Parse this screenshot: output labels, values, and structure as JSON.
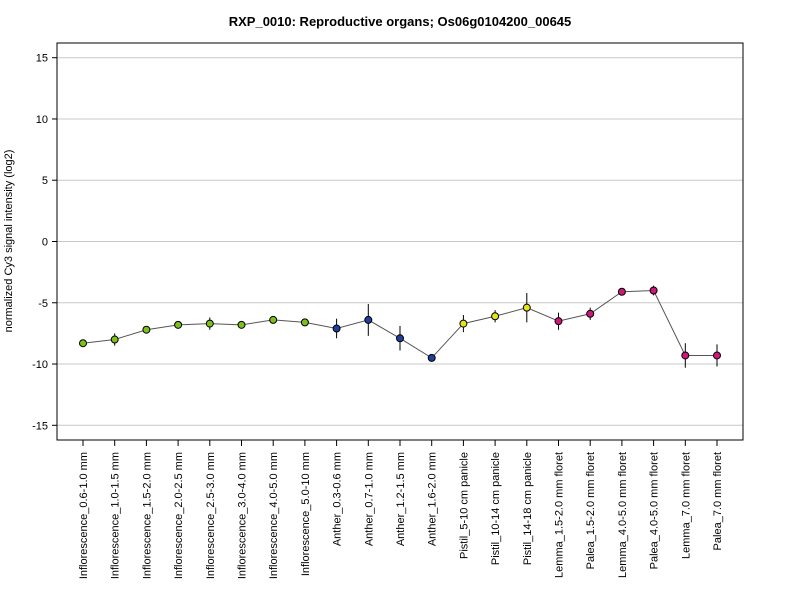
{
  "chart_data": {
    "type": "line",
    "title": "RXP_0010: Reproductive organs; Os06g0104200_00645",
    "xlabel": "",
    "ylabel": "normalized Cy3 signal intensity (log2)",
    "ylim": [
      -16.2,
      16.2
    ],
    "yticks": [
      15,
      10,
      5,
      0,
      -5,
      -10,
      -15
    ],
    "grid": "horizontal",
    "categories": [
      "Inflorescence_0.6-1.0 mm",
      "Inflorescence_1.0-1.5 mm",
      "Inflorescence_1.5-2.0 mm",
      "Inflorescence_2.0-2.5 mm",
      "Inflorescence_2.5-3.0 mm",
      "Inflorescence_3.0-4.0 mm",
      "Inflorescence_4.0-5.0 mm",
      "Inflorescence_5.0-10 mm",
      "Anther_0.3-0.6 mm",
      "Anther_0.7-1.0 mm",
      "Anther_1.2-1.5 mm",
      "Anther_1.6-2.0 mm",
      "Pistil_5-10 cm panicle",
      "Pistil_10-14 cm panicle",
      "Pistil_14-18 cm panicle",
      "Lemma_1.5-2.0 mm floret",
      "Palea_1.5-2.0 mm floret",
      "Lemma_4.0-5.0 mm floret",
      "Palea_4.0-5.0 mm floret",
      "Lemma_7.0 mm floret",
      "Palea_7.0 mm floret"
    ],
    "series": [
      {
        "values": [
          -8.3,
          -8.0,
          -7.2,
          -6.8,
          -6.7,
          -6.8,
          -6.4,
          -6.6,
          -7.1,
          -6.4,
          -7.9,
          -9.5,
          -6.7,
          -6.1,
          -5.4,
          -6.5,
          -5.9,
          -4.1,
          -4.0,
          -9.3,
          -9.3
        ],
        "errors": [
          0.25,
          0.5,
          0.3,
          0.2,
          0.5,
          0.2,
          0.2,
          0.2,
          0.8,
          1.3,
          1.0,
          0.15,
          0.7,
          0.5,
          1.2,
          0.7,
          0.5,
          0.15,
          0.4,
          1.0,
          0.9
        ],
        "colors": [
          "#7cc01a",
          "#7cc01a",
          "#7cc01a",
          "#7cc01a",
          "#7cc01a",
          "#7cc01a",
          "#7cc01a",
          "#7cc01a",
          "#1f3f9e",
          "#1f3f9e",
          "#1f3f9e",
          "#1f3f9e",
          "#e6e31a",
          "#e6e31a",
          "#e6e31a",
          "#d0187a",
          "#d0187a",
          "#d0187a",
          "#d0187a",
          "#d0187a",
          "#d0187a"
        ]
      }
    ],
    "line_color": "#555555",
    "grid_color": "#c8c8c8"
  }
}
